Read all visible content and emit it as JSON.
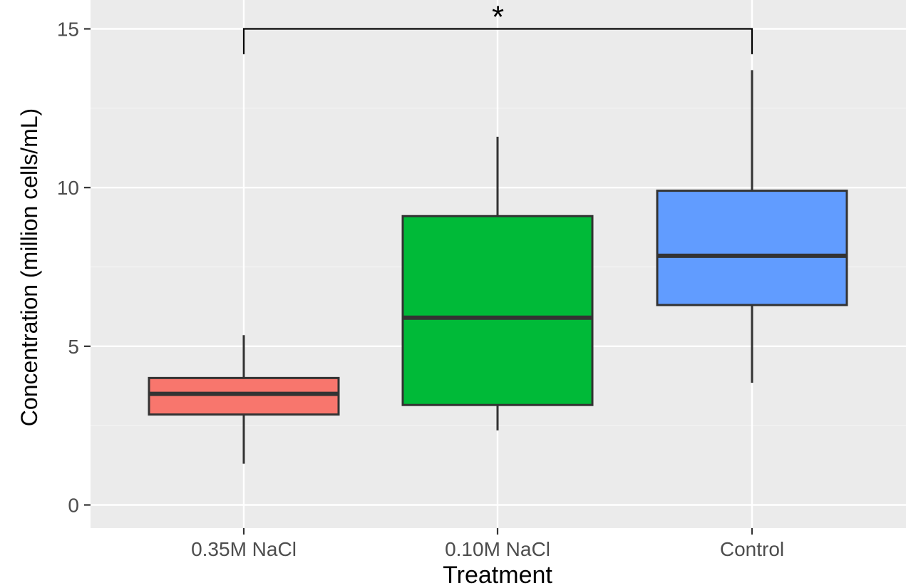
{
  "chart_data": {
    "type": "box",
    "title": "",
    "xlabel": "Treatment",
    "ylabel": "Concentration (million cells/mL)",
    "ylim": [
      -0.75,
      15.6
    ],
    "yticks": [
      0,
      5,
      10,
      15
    ],
    "y_minor_ticks": [
      2.5,
      7.5,
      12.5
    ],
    "grid": true,
    "legend": "none",
    "categories": [
      "0.35M NaCl",
      "0.10M NaCl",
      "Control"
    ],
    "boxes": [
      {
        "category": "0.35M NaCl",
        "lower_whisker": 1.3,
        "q1": 2.85,
        "median": 3.5,
        "q3": 4.0,
        "upper_whisker": 5.35,
        "color": "#F8766D"
      },
      {
        "category": "0.10M NaCl",
        "lower_whisker": 2.35,
        "q1": 3.15,
        "median": 5.9,
        "q3": 9.1,
        "upper_whisker": 11.6,
        "color": "#00BA38"
      },
      {
        "category": "Control",
        "lower_whisker": 3.85,
        "q1": 6.3,
        "median": 7.85,
        "q3": 9.9,
        "upper_whisker": 13.7,
        "color": "#619CFF"
      }
    ],
    "annotations": [
      {
        "type": "significance-bracket",
        "from": "0.35M NaCl",
        "to": "Control",
        "label": "*",
        "y": 15.0,
        "tip_y": 14.2
      }
    ],
    "colors": {
      "panel_background": "#EBEBEB",
      "grid_major": "#FFFFFF",
      "grid_minor": "#F4F4F4",
      "box_outline": "#333333"
    }
  }
}
